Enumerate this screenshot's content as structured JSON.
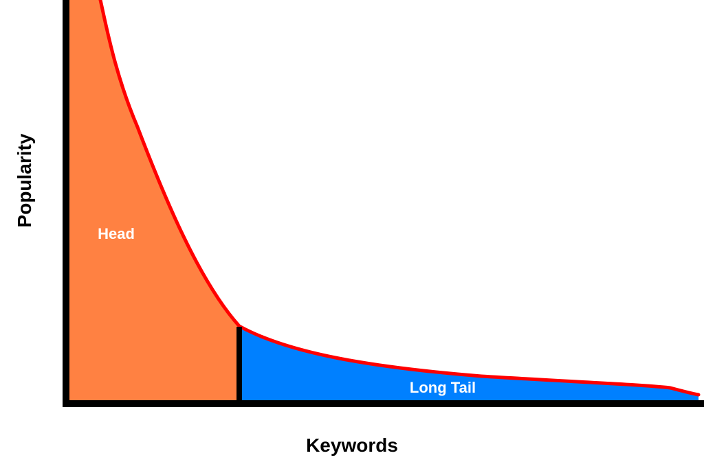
{
  "labels": {
    "head": "Head",
    "long_tail": "Long Tail",
    "x_axis": "Keywords",
    "y_axis": "Popularity"
  },
  "colors": {
    "head_fill": "#FF8142",
    "tail_fill": "#0080FF",
    "curve": "#FF0000",
    "axis": "#000000",
    "label_text": "#FFFFFF"
  }
}
